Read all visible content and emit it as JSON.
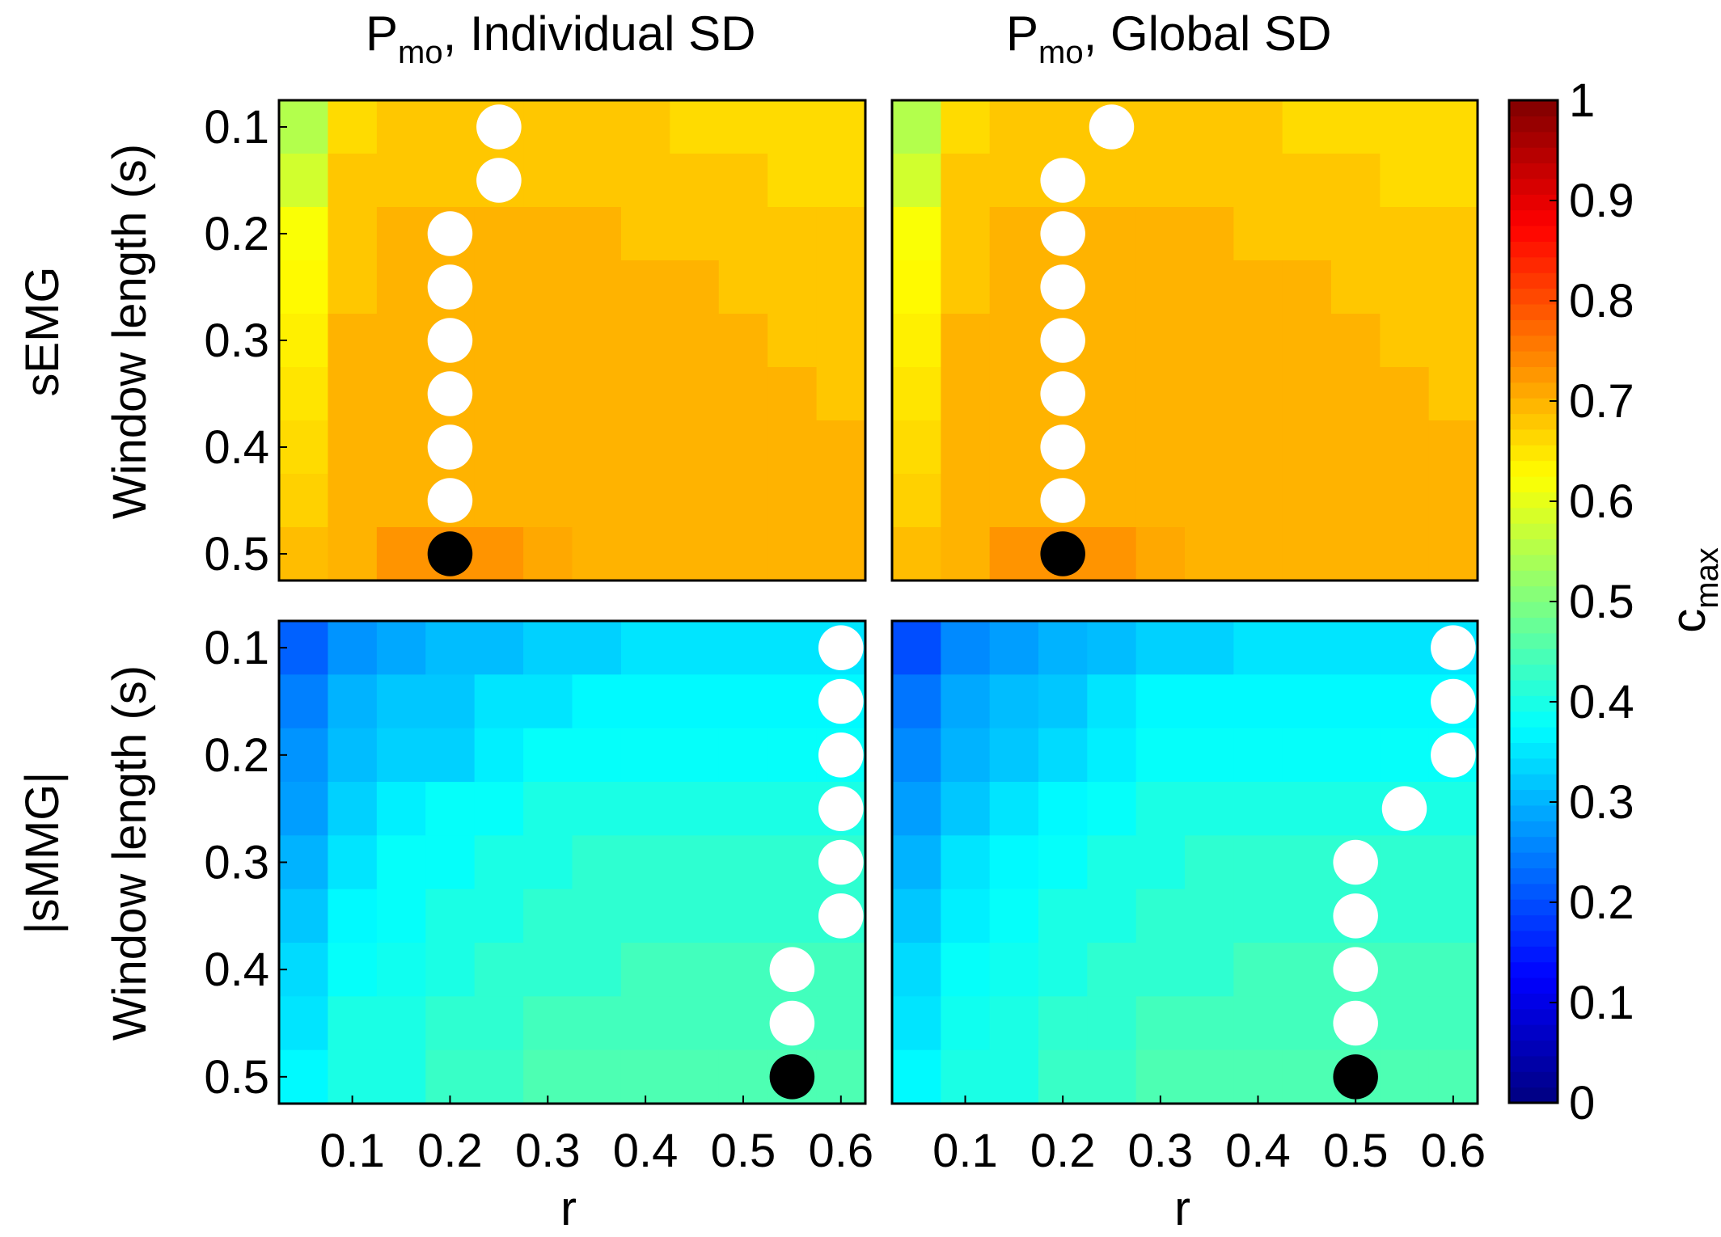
{
  "chart_data": {
    "type": "heatmap",
    "titles": [
      {
        "main": "P",
        "sub": "mo",
        "suffix": ", Individual SD"
      },
      {
        "main": "P",
        "sub": "mo",
        "suffix": ", Global SD"
      }
    ],
    "row_labels": [
      "sEMG",
      "|sMMG|"
    ],
    "ylabel": "Window length (s)",
    "xlabel": "r",
    "x_values": [
      0.05,
      0.1,
      0.15,
      0.2,
      0.25,
      0.3,
      0.35,
      0.4,
      0.45,
      0.5,
      0.55,
      0.6
    ],
    "y_values": [
      0.1,
      0.15,
      0.2,
      0.25,
      0.3,
      0.35,
      0.4,
      0.45,
      0.5
    ],
    "x_ticks": [
      {
        "value": 0.1,
        "label": "0.1"
      },
      {
        "value": 0.2,
        "label": "0.2"
      },
      {
        "value": 0.3,
        "label": "0.3"
      },
      {
        "value": 0.4,
        "label": "0.4"
      },
      {
        "value": 0.5,
        "label": "0.5"
      },
      {
        "value": 0.6,
        "label": "0.6"
      }
    ],
    "y_ticks": [
      {
        "value": 0.1,
        "label": "0.1"
      },
      {
        "value": 0.2,
        "label": "0.2"
      },
      {
        "value": 0.3,
        "label": "0.3"
      },
      {
        "value": 0.4,
        "label": "0.4"
      },
      {
        "value": 0.5,
        "label": "0.5"
      }
    ],
    "colorbar": {
      "label_main": "c",
      "label_sub": "max",
      "range": [
        0,
        1
      ],
      "ticks": [
        {
          "value": 0,
          "label": "0"
        },
        {
          "value": 0.1,
          "label": "0.1"
        },
        {
          "value": 0.2,
          "label": "0.2"
        },
        {
          "value": 0.3,
          "label": "0.3"
        },
        {
          "value": 0.4,
          "label": "0.4"
        },
        {
          "value": 0.5,
          "label": "0.5"
        },
        {
          "value": 0.6,
          "label": "0.6"
        },
        {
          "value": 0.7,
          "label": "0.7"
        },
        {
          "value": 0.8,
          "label": "0.8"
        },
        {
          "value": 0.9,
          "label": "0.9"
        },
        {
          "value": 1,
          "label": "1"
        }
      ],
      "colormap": "jet",
      "levels": 64
    },
    "panels": [
      {
        "name": "semg-individual",
        "grid": [
          [
            0.55,
            0.66,
            0.68,
            0.68,
            0.68,
            0.68,
            0.68,
            0.68,
            0.66,
            0.66,
            0.66,
            0.66
          ],
          [
            0.58,
            0.68,
            0.68,
            0.68,
            0.68,
            0.68,
            0.68,
            0.68,
            0.68,
            0.68,
            0.66,
            0.66
          ],
          [
            0.62,
            0.68,
            0.7,
            0.7,
            0.7,
            0.7,
            0.7,
            0.68,
            0.68,
            0.68,
            0.68,
            0.68
          ],
          [
            0.63,
            0.68,
            0.7,
            0.7,
            0.7,
            0.7,
            0.7,
            0.7,
            0.7,
            0.68,
            0.68,
            0.68
          ],
          [
            0.64,
            0.7,
            0.7,
            0.7,
            0.7,
            0.7,
            0.7,
            0.7,
            0.7,
            0.7,
            0.68,
            0.68
          ],
          [
            0.65,
            0.7,
            0.7,
            0.7,
            0.7,
            0.7,
            0.7,
            0.7,
            0.7,
            0.7,
            0.7,
            0.68
          ],
          [
            0.66,
            0.7,
            0.7,
            0.7,
            0.7,
            0.7,
            0.7,
            0.7,
            0.7,
            0.7,
            0.7,
            0.7
          ],
          [
            0.67,
            0.7,
            0.7,
            0.7,
            0.7,
            0.7,
            0.7,
            0.7,
            0.7,
            0.7,
            0.7,
            0.7
          ],
          [
            0.69,
            0.7,
            0.73,
            0.73,
            0.73,
            0.71,
            0.7,
            0.7,
            0.7,
            0.7,
            0.7,
            0.7
          ]
        ],
        "markers": [
          {
            "r": 0.25,
            "w": 0.1,
            "kind": "white"
          },
          {
            "r": 0.25,
            "w": 0.15,
            "kind": "white"
          },
          {
            "r": 0.2,
            "w": 0.2,
            "kind": "white"
          },
          {
            "r": 0.2,
            "w": 0.25,
            "kind": "white"
          },
          {
            "r": 0.2,
            "w": 0.3,
            "kind": "white"
          },
          {
            "r": 0.2,
            "w": 0.35,
            "kind": "white"
          },
          {
            "r": 0.2,
            "w": 0.4,
            "kind": "white"
          },
          {
            "r": 0.2,
            "w": 0.45,
            "kind": "white"
          },
          {
            "r": 0.2,
            "w": 0.5,
            "kind": "black"
          }
        ]
      },
      {
        "name": "semg-global",
        "grid": [
          [
            0.55,
            0.66,
            0.68,
            0.68,
            0.68,
            0.68,
            0.68,
            0.68,
            0.66,
            0.66,
            0.66,
            0.66
          ],
          [
            0.58,
            0.68,
            0.68,
            0.68,
            0.68,
            0.68,
            0.68,
            0.68,
            0.68,
            0.68,
            0.66,
            0.66
          ],
          [
            0.62,
            0.68,
            0.7,
            0.7,
            0.7,
            0.7,
            0.7,
            0.68,
            0.68,
            0.68,
            0.68,
            0.68
          ],
          [
            0.63,
            0.68,
            0.7,
            0.7,
            0.7,
            0.7,
            0.7,
            0.7,
            0.7,
            0.68,
            0.68,
            0.68
          ],
          [
            0.64,
            0.7,
            0.7,
            0.7,
            0.7,
            0.7,
            0.7,
            0.7,
            0.7,
            0.7,
            0.68,
            0.68
          ],
          [
            0.65,
            0.7,
            0.7,
            0.7,
            0.7,
            0.7,
            0.7,
            0.7,
            0.7,
            0.7,
            0.7,
            0.68
          ],
          [
            0.66,
            0.7,
            0.7,
            0.7,
            0.7,
            0.7,
            0.7,
            0.7,
            0.7,
            0.7,
            0.7,
            0.7
          ],
          [
            0.67,
            0.7,
            0.7,
            0.7,
            0.7,
            0.7,
            0.7,
            0.7,
            0.7,
            0.7,
            0.7,
            0.7
          ],
          [
            0.69,
            0.7,
            0.73,
            0.73,
            0.73,
            0.71,
            0.7,
            0.7,
            0.7,
            0.7,
            0.7,
            0.7
          ]
        ],
        "markers": [
          {
            "r": 0.25,
            "w": 0.1,
            "kind": "white"
          },
          {
            "r": 0.2,
            "w": 0.15,
            "kind": "white"
          },
          {
            "r": 0.2,
            "w": 0.2,
            "kind": "white"
          },
          {
            "r": 0.2,
            "w": 0.25,
            "kind": "white"
          },
          {
            "r": 0.2,
            "w": 0.3,
            "kind": "white"
          },
          {
            "r": 0.2,
            "w": 0.35,
            "kind": "white"
          },
          {
            "r": 0.2,
            "w": 0.4,
            "kind": "white"
          },
          {
            "r": 0.2,
            "w": 0.45,
            "kind": "white"
          },
          {
            "r": 0.2,
            "w": 0.5,
            "kind": "black"
          }
        ]
      },
      {
        "name": "smmg-individual",
        "grid": [
          [
            0.22,
            0.27,
            0.29,
            0.31,
            0.31,
            0.33,
            0.33,
            0.35,
            0.35,
            0.35,
            0.35,
            0.35
          ],
          [
            0.25,
            0.3,
            0.32,
            0.32,
            0.35,
            0.35,
            0.37,
            0.37,
            0.37,
            0.37,
            0.37,
            0.37
          ],
          [
            0.27,
            0.31,
            0.33,
            0.33,
            0.36,
            0.38,
            0.38,
            0.38,
            0.38,
            0.38,
            0.38,
            0.38
          ],
          [
            0.28,
            0.33,
            0.36,
            0.38,
            0.38,
            0.4,
            0.4,
            0.4,
            0.4,
            0.4,
            0.4,
            0.4
          ],
          [
            0.3,
            0.35,
            0.38,
            0.38,
            0.4,
            0.4,
            0.42,
            0.42,
            0.42,
            0.42,
            0.42,
            0.42
          ],
          [
            0.32,
            0.37,
            0.38,
            0.4,
            0.4,
            0.42,
            0.42,
            0.42,
            0.42,
            0.42,
            0.42,
            0.42
          ],
          [
            0.34,
            0.38,
            0.39,
            0.4,
            0.42,
            0.42,
            0.42,
            0.44,
            0.44,
            0.44,
            0.44,
            0.44
          ],
          [
            0.35,
            0.4,
            0.4,
            0.42,
            0.42,
            0.44,
            0.44,
            0.44,
            0.44,
            0.44,
            0.44,
            0.44
          ],
          [
            0.37,
            0.4,
            0.4,
            0.43,
            0.43,
            0.45,
            0.45,
            0.45,
            0.45,
            0.45,
            0.45,
            0.45
          ]
        ],
        "markers": [
          {
            "r": 0.6,
            "w": 0.1,
            "kind": "white"
          },
          {
            "r": 0.6,
            "w": 0.15,
            "kind": "white"
          },
          {
            "r": 0.6,
            "w": 0.2,
            "kind": "white"
          },
          {
            "r": 0.6,
            "w": 0.25,
            "kind": "white"
          },
          {
            "r": 0.6,
            "w": 0.3,
            "kind": "white"
          },
          {
            "r": 0.6,
            "w": 0.35,
            "kind": "white"
          },
          {
            "r": 0.55,
            "w": 0.4,
            "kind": "white"
          },
          {
            "r": 0.55,
            "w": 0.45,
            "kind": "white"
          },
          {
            "r": 0.55,
            "w": 0.5,
            "kind": "black"
          }
        ]
      },
      {
        "name": "smmg-global",
        "grid": [
          [
            0.2,
            0.26,
            0.28,
            0.3,
            0.31,
            0.33,
            0.33,
            0.35,
            0.35,
            0.35,
            0.35,
            0.35
          ],
          [
            0.24,
            0.29,
            0.31,
            0.32,
            0.35,
            0.37,
            0.37,
            0.37,
            0.37,
            0.37,
            0.37,
            0.37
          ],
          [
            0.26,
            0.3,
            0.32,
            0.34,
            0.36,
            0.38,
            0.38,
            0.38,
            0.38,
            0.38,
            0.38,
            0.38
          ],
          [
            0.28,
            0.32,
            0.35,
            0.37,
            0.38,
            0.4,
            0.4,
            0.4,
            0.4,
            0.4,
            0.4,
            0.4
          ],
          [
            0.3,
            0.35,
            0.37,
            0.38,
            0.4,
            0.4,
            0.42,
            0.42,
            0.42,
            0.42,
            0.42,
            0.42
          ],
          [
            0.32,
            0.36,
            0.38,
            0.4,
            0.4,
            0.42,
            0.42,
            0.42,
            0.42,
            0.42,
            0.42,
            0.42
          ],
          [
            0.34,
            0.38,
            0.39,
            0.4,
            0.42,
            0.42,
            0.42,
            0.44,
            0.44,
            0.44,
            0.44,
            0.44
          ],
          [
            0.35,
            0.39,
            0.4,
            0.42,
            0.42,
            0.44,
            0.44,
            0.44,
            0.44,
            0.44,
            0.44,
            0.44
          ],
          [
            0.37,
            0.4,
            0.4,
            0.43,
            0.43,
            0.45,
            0.45,
            0.45,
            0.45,
            0.45,
            0.45,
            0.45
          ]
        ],
        "markers": [
          {
            "r": 0.6,
            "w": 0.1,
            "kind": "white"
          },
          {
            "r": 0.6,
            "w": 0.15,
            "kind": "white"
          },
          {
            "r": 0.6,
            "w": 0.2,
            "kind": "white"
          },
          {
            "r": 0.55,
            "w": 0.25,
            "kind": "white"
          },
          {
            "r": 0.5,
            "w": 0.3,
            "kind": "white"
          },
          {
            "r": 0.5,
            "w": 0.35,
            "kind": "white"
          },
          {
            "r": 0.5,
            "w": 0.4,
            "kind": "white"
          },
          {
            "r": 0.5,
            "w": 0.45,
            "kind": "white"
          },
          {
            "r": 0.5,
            "w": 0.5,
            "kind": "black"
          }
        ]
      }
    ]
  }
}
